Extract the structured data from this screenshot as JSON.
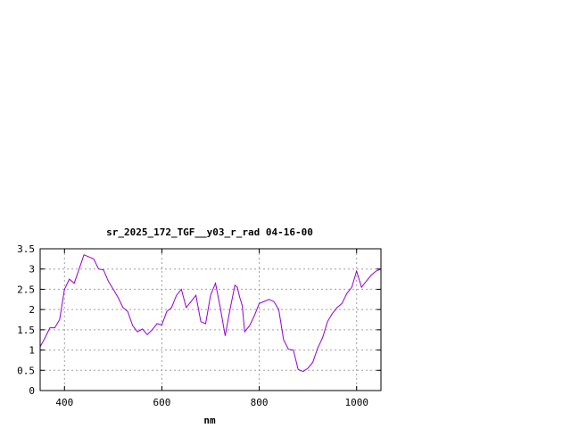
{
  "chart_data": {
    "type": "line",
    "title": "sr_2025_172_TGF__y03_r_rad 04-16-00",
    "xlabel": "nm",
    "ylabel": "",
    "xlim": [
      350,
      1050
    ],
    "ylim": [
      0,
      3.5
    ],
    "x_ticks": [
      400,
      600,
      800,
      1000
    ],
    "y_ticks": [
      0,
      0.5,
      1,
      1.5,
      2,
      2.5,
      3,
      3.5
    ],
    "x_tick_labels": [
      "400",
      "600",
      "800",
      "1000"
    ],
    "y_tick_labels": [
      "0",
      "0.5",
      "1",
      "1.5",
      "2",
      "2.5",
      "3",
      "3.5"
    ],
    "grid": true,
    "legend": "none",
    "line_color": "#9400d3",
    "series": [
      {
        "x": [
          350,
          360,
          370,
          380,
          390,
          400,
          410,
          420,
          430,
          440,
          450,
          460,
          470,
          480,
          490,
          500,
          510,
          520,
          530,
          540,
          550,
          560,
          570,
          580,
          590,
          600,
          610,
          620,
          630,
          640,
          650,
          660,
          670,
          680,
          690,
          700,
          710,
          720,
          730,
          740,
          750,
          755,
          760,
          765,
          770,
          780,
          790,
          800,
          810,
          820,
          830,
          840,
          850,
          860,
          870,
          880,
          890,
          900,
          910,
          920,
          930,
          940,
          950,
          960,
          970,
          980,
          990,
          1000,
          1010,
          1020,
          1030,
          1040,
          1050
        ],
        "y": [
          1.08,
          1.3,
          1.55,
          1.55,
          1.75,
          2.5,
          2.75,
          2.65,
          3.0,
          3.35,
          3.3,
          3.25,
          3.0,
          2.98,
          2.7,
          2.5,
          2.3,
          2.05,
          1.95,
          1.6,
          1.45,
          1.52,
          1.38,
          1.5,
          1.65,
          1.62,
          1.95,
          2.05,
          2.35,
          2.5,
          2.05,
          2.2,
          2.35,
          1.7,
          1.65,
          2.35,
          2.65,
          2.05,
          1.35,
          2.0,
          2.6,
          2.55,
          2.3,
          2.1,
          1.45,
          1.6,
          1.85,
          2.15,
          2.2,
          2.25,
          2.2,
          2.0,
          1.25,
          1.02,
          1.0,
          0.52,
          0.47,
          0.55,
          0.7,
          1.05,
          1.3,
          1.7,
          1.9,
          2.05,
          2.15,
          2.4,
          2.55,
          2.95,
          2.55,
          2.7,
          2.85,
          2.95,
          3.0
        ],
        "color": "#9400d3"
      }
    ]
  }
}
